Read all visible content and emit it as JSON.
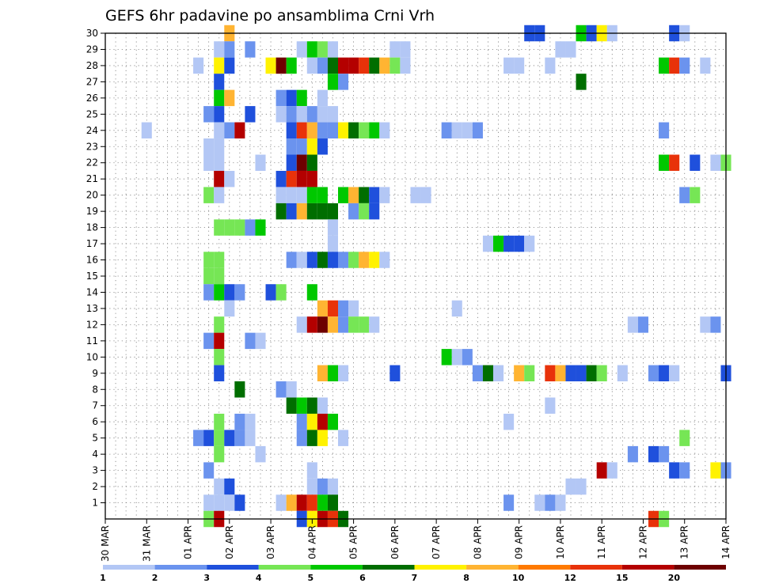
{
  "chart_data": {
    "type": "heatmap",
    "title": "GEFS 6hr padavine po ansamblima Crni Vrh",
    "xlabel": "",
    "ylabel": "",
    "x_tick_labels": [
      "30 MAR",
      "31 MAR",
      "01 APR",
      "02 APR",
      "03 APR",
      "04 APR",
      "05 APR",
      "06 APR",
      "07 APR",
      "08 APR",
      "09 APR",
      "10 APR",
      "11 APR",
      "12 APR",
      "13 APR",
      "14 APR"
    ],
    "x_unit": "6-hour steps from 30 MAR 00Z",
    "xlim": [
      0,
      60
    ],
    "y_tick_labels": [
      "1",
      "2",
      "3",
      "4",
      "5",
      "6",
      "7",
      "8",
      "9",
      "10",
      "11",
      "12",
      "13",
      "14",
      "15",
      "16",
      "17",
      "18",
      "19",
      "20",
      "21",
      "22",
      "23",
      "24",
      "25",
      "26",
      "27",
      "28",
      "29",
      "30"
    ],
    "ylim": [
      0,
      30
    ],
    "grid": true,
    "colorbar": {
      "labels": [
        "1",
        "2",
        "3",
        "4",
        "5",
        "6",
        "7",
        "8",
        "10",
        "12",
        "15",
        "20"
      ],
      "colors": [
        "#b3c7f5",
        "#6b93ee",
        "#1f50dc",
        "#76e655",
        "#00c800",
        "#006e00",
        "#fff200",
        "#ffb432",
        "#ff7a00",
        "#e8320a",
        "#b40000",
        "#6e0000"
      ]
    },
    "cells": [
      [
        30,
        12,
        "#ffb432"
      ],
      [
        30,
        41,
        "#1f50dc"
      ],
      [
        30,
        42,
        "#1f50dc"
      ],
      [
        30,
        46,
        "#00c800"
      ],
      [
        30,
        47,
        "#1f50dc"
      ],
      [
        30,
        48,
        "#fff200"
      ],
      [
        30,
        49,
        "#b3c7f5"
      ],
      [
        30,
        55,
        "#1f50dc"
      ],
      [
        30,
        56,
        "#b3c7f5"
      ],
      [
        29,
        11,
        "#b3c7f5"
      ],
      [
        29,
        12,
        "#6b93ee"
      ],
      [
        29,
        14,
        "#6b93ee"
      ],
      [
        29,
        19,
        "#b3c7f5"
      ],
      [
        29,
        20,
        "#00c800"
      ],
      [
        29,
        21,
        "#76e655"
      ],
      [
        29,
        22,
        "#b3c7f5"
      ],
      [
        29,
        28,
        "#b3c7f5"
      ],
      [
        29,
        29,
        "#b3c7f5"
      ],
      [
        29,
        44,
        "#b3c7f5"
      ],
      [
        29,
        45,
        "#b3c7f5"
      ],
      [
        28,
        9,
        "#b3c7f5"
      ],
      [
        28,
        11,
        "#fff200"
      ],
      [
        28,
        12,
        "#1f50dc"
      ],
      [
        28,
        16,
        "#fff200"
      ],
      [
        28,
        17,
        "#6e0000"
      ],
      [
        28,
        18,
        "#00c800"
      ],
      [
        28,
        20,
        "#b3c7f5"
      ],
      [
        28,
        21,
        "#6b93ee"
      ],
      [
        28,
        22,
        "#006e00"
      ],
      [
        28,
        23,
        "#b40000"
      ],
      [
        28,
        24,
        "#b40000"
      ],
      [
        28,
        25,
        "#e8320a"
      ],
      [
        28,
        26,
        "#006e00"
      ],
      [
        28,
        27,
        "#ffb432"
      ],
      [
        28,
        28,
        "#76e655"
      ],
      [
        28,
        29,
        "#b3c7f5"
      ],
      [
        28,
        39,
        "#b3c7f5"
      ],
      [
        28,
        40,
        "#b3c7f5"
      ],
      [
        28,
        43,
        "#b3c7f5"
      ],
      [
        28,
        54,
        "#00c800"
      ],
      [
        28,
        55,
        "#e8320a"
      ],
      [
        28,
        56,
        "#6b93ee"
      ],
      [
        28,
        58,
        "#b3c7f5"
      ],
      [
        27,
        11,
        "#1f50dc"
      ],
      [
        27,
        22,
        "#00c800"
      ],
      [
        27,
        23,
        "#6b93ee"
      ],
      [
        27,
        46,
        "#006e00"
      ],
      [
        26,
        11,
        "#00c800"
      ],
      [
        26,
        12,
        "#ffb432"
      ],
      [
        26,
        17,
        "#6b93ee"
      ],
      [
        26,
        18,
        "#1f50dc"
      ],
      [
        26,
        19,
        "#00c800"
      ],
      [
        26,
        21,
        "#b3c7f5"
      ],
      [
        25,
        10,
        "#6b93ee"
      ],
      [
        25,
        11,
        "#1f50dc"
      ],
      [
        25,
        14,
        "#1f50dc"
      ],
      [
        25,
        17,
        "#b3c7f5"
      ],
      [
        25,
        18,
        "#6b93ee"
      ],
      [
        25,
        19,
        "#b3c7f5"
      ],
      [
        25,
        20,
        "#6b93ee"
      ],
      [
        25,
        21,
        "#b3c7f5"
      ],
      [
        25,
        22,
        "#b3c7f5"
      ],
      [
        24,
        4,
        "#b3c7f5"
      ],
      [
        24,
        11,
        "#b3c7f5"
      ],
      [
        24,
        12,
        "#6b93ee"
      ],
      [
        24,
        13,
        "#b40000"
      ],
      [
        24,
        18,
        "#1f50dc"
      ],
      [
        24,
        19,
        "#e8320a"
      ],
      [
        24,
        20,
        "#ffb432"
      ],
      [
        24,
        21,
        "#6b93ee"
      ],
      [
        24,
        22,
        "#6b93ee"
      ],
      [
        24,
        23,
        "#fff200"
      ],
      [
        24,
        24,
        "#006e00"
      ],
      [
        24,
        25,
        "#76e655"
      ],
      [
        24,
        26,
        "#00c800"
      ],
      [
        24,
        27,
        "#b3c7f5"
      ],
      [
        24,
        33,
        "#6b93ee"
      ],
      [
        24,
        34,
        "#b3c7f5"
      ],
      [
        24,
        35,
        "#b3c7f5"
      ],
      [
        24,
        36,
        "#6b93ee"
      ],
      [
        24,
        54,
        "#6b93ee"
      ],
      [
        23,
        10,
        "#b3c7f5"
      ],
      [
        23,
        11,
        "#b3c7f5"
      ],
      [
        23,
        18,
        "#6b93ee"
      ],
      [
        23,
        19,
        "#6b93ee"
      ],
      [
        23,
        20,
        "#fff200"
      ],
      [
        23,
        21,
        "#1f50dc"
      ],
      [
        22,
        10,
        "#b3c7f5"
      ],
      [
        22,
        11,
        "#b3c7f5"
      ],
      [
        22,
        15,
        "#b3c7f5"
      ],
      [
        22,
        18,
        "#1f50dc"
      ],
      [
        22,
        19,
        "#6e0000"
      ],
      [
        22,
        20,
        "#006e00"
      ],
      [
        22,
        54,
        "#00c800"
      ],
      [
        22,
        55,
        "#e8320a"
      ],
      [
        22,
        57,
        "#1f50dc"
      ],
      [
        22,
        59,
        "#b3c7f5"
      ],
      [
        22,
        60,
        "#76e655"
      ],
      [
        21,
        11,
        "#b40000"
      ],
      [
        21,
        12,
        "#b3c7f5"
      ],
      [
        21,
        17,
        "#1f50dc"
      ],
      [
        21,
        18,
        "#e8320a"
      ],
      [
        21,
        19,
        "#b40000"
      ],
      [
        21,
        20,
        "#b40000"
      ],
      [
        20,
        10,
        "#76e655"
      ],
      [
        20,
        11,
        "#b3c7f5"
      ],
      [
        20,
        17,
        "#b3c7f5"
      ],
      [
        20,
        18,
        "#b3c7f5"
      ],
      [
        20,
        19,
        "#b3c7f5"
      ],
      [
        20,
        20,
        "#00c800"
      ],
      [
        20,
        21,
        "#00c800"
      ],
      [
        20,
        23,
        "#00c800"
      ],
      [
        20,
        24,
        "#ffb432"
      ],
      [
        20,
        25,
        "#006e00"
      ],
      [
        20,
        26,
        "#1f50dc"
      ],
      [
        20,
        27,
        "#b3c7f5"
      ],
      [
        20,
        30,
        "#b3c7f5"
      ],
      [
        20,
        31,
        "#b3c7f5"
      ],
      [
        20,
        56,
        "#6b93ee"
      ],
      [
        20,
        57,
        "#76e655"
      ],
      [
        19,
        17,
        "#006e00"
      ],
      [
        19,
        18,
        "#1f50dc"
      ],
      [
        19,
        19,
        "#ffb432"
      ],
      [
        19,
        20,
        "#006e00"
      ],
      [
        19,
        21,
        "#006e00"
      ],
      [
        19,
        22,
        "#006e00"
      ],
      [
        19,
        24,
        "#6b93ee"
      ],
      [
        19,
        25,
        "#76e655"
      ],
      [
        19,
        26,
        "#1f50dc"
      ],
      [
        18,
        11,
        "#76e655"
      ],
      [
        18,
        12,
        "#76e655"
      ],
      [
        18,
        13,
        "#76e655"
      ],
      [
        18,
        14,
        "#6b93ee"
      ],
      [
        18,
        15,
        "#00c800"
      ],
      [
        18,
        22,
        "#b3c7f5"
      ],
      [
        17,
        22,
        "#b3c7f5"
      ],
      [
        17,
        37,
        "#b3c7f5"
      ],
      [
        17,
        38,
        "#00c800"
      ],
      [
        17,
        39,
        "#1f50dc"
      ],
      [
        17,
        40,
        "#1f50dc"
      ],
      [
        17,
        41,
        "#b3c7f5"
      ],
      [
        16,
        10,
        "#76e655"
      ],
      [
        16,
        11,
        "#76e655"
      ],
      [
        16,
        18,
        "#6b93ee"
      ],
      [
        16,
        19,
        "#b3c7f5"
      ],
      [
        16,
        20,
        "#1f50dc"
      ],
      [
        16,
        21,
        "#006e00"
      ],
      [
        16,
        22,
        "#1f50dc"
      ],
      [
        16,
        23,
        "#6b93ee"
      ],
      [
        16,
        24,
        "#76e655"
      ],
      [
        16,
        25,
        "#ffb432"
      ],
      [
        16,
        26,
        "#fff200"
      ],
      [
        16,
        27,
        "#b3c7f5"
      ],
      [
        15,
        10,
        "#76e655"
      ],
      [
        15,
        11,
        "#76e655"
      ],
      [
        14,
        10,
        "#6b93ee"
      ],
      [
        14,
        11,
        "#00c800"
      ],
      [
        14,
        12,
        "#1f50dc"
      ],
      [
        14,
        13,
        "#6b93ee"
      ],
      [
        14,
        16,
        "#1f50dc"
      ],
      [
        14,
        17,
        "#76e655"
      ],
      [
        14,
        20,
        "#00c800"
      ],
      [
        13,
        12,
        "#b3c7f5"
      ],
      [
        13,
        21,
        "#ffb432"
      ],
      [
        13,
        22,
        "#e8320a"
      ],
      [
        13,
        23,
        "#6b93ee"
      ],
      [
        13,
        24,
        "#b3c7f5"
      ],
      [
        13,
        34,
        "#b3c7f5"
      ],
      [
        12,
        11,
        "#76e655"
      ],
      [
        12,
        19,
        "#b3c7f5"
      ],
      [
        12,
        20,
        "#b40000"
      ],
      [
        12,
        21,
        "#6e0000"
      ],
      [
        12,
        22,
        "#ffb432"
      ],
      [
        12,
        23,
        "#6b93ee"
      ],
      [
        12,
        24,
        "#76e655"
      ],
      [
        12,
        25,
        "#76e655"
      ],
      [
        12,
        26,
        "#b3c7f5"
      ],
      [
        12,
        51,
        "#b3c7f5"
      ],
      [
        12,
        52,
        "#6b93ee"
      ],
      [
        12,
        58,
        "#b3c7f5"
      ],
      [
        12,
        59,
        "#6b93ee"
      ],
      [
        11,
        10,
        "#6b93ee"
      ],
      [
        11,
        11,
        "#b40000"
      ],
      [
        11,
        14,
        "#6b93ee"
      ],
      [
        11,
        15,
        "#b3c7f5"
      ],
      [
        10,
        11,
        "#76e655"
      ],
      [
        10,
        33,
        "#00c800"
      ],
      [
        10,
        34,
        "#b3c7f5"
      ],
      [
        10,
        35,
        "#6b93ee"
      ],
      [
        9,
        11,
        "#1f50dc"
      ],
      [
        9,
        21,
        "#ffb432"
      ],
      [
        9,
        22,
        "#00c800"
      ],
      [
        9,
        23,
        "#b3c7f5"
      ],
      [
        9,
        28,
        "#1f50dc"
      ],
      [
        9,
        36,
        "#6b93ee"
      ],
      [
        9,
        37,
        "#006e00"
      ],
      [
        9,
        38,
        "#b3c7f5"
      ],
      [
        9,
        40,
        "#ffb432"
      ],
      [
        9,
        41,
        "#76e655"
      ],
      [
        9,
        43,
        "#e8320a"
      ],
      [
        9,
        44,
        "#ffb432"
      ],
      [
        9,
        45,
        "#1f50dc"
      ],
      [
        9,
        46,
        "#1f50dc"
      ],
      [
        9,
        47,
        "#006e00"
      ],
      [
        9,
        48,
        "#76e655"
      ],
      [
        9,
        50,
        "#b3c7f5"
      ],
      [
        9,
        53,
        "#6b93ee"
      ],
      [
        9,
        54,
        "#1f50dc"
      ],
      [
        9,
        55,
        "#b3c7f5"
      ],
      [
        9,
        60,
        "#1f50dc"
      ],
      [
        8,
        13,
        "#006e00"
      ],
      [
        8,
        17,
        "#6b93ee"
      ],
      [
        8,
        18,
        "#b3c7f5"
      ],
      [
        7,
        18,
        "#006e00"
      ],
      [
        7,
        19,
        "#00c800"
      ],
      [
        7,
        20,
        "#006e00"
      ],
      [
        7,
        21,
        "#b3c7f5"
      ],
      [
        7,
        43,
        "#b3c7f5"
      ],
      [
        6,
        11,
        "#76e655"
      ],
      [
        6,
        13,
        "#6b93ee"
      ],
      [
        6,
        14,
        "#b3c7f5"
      ],
      [
        6,
        19,
        "#6b93ee"
      ],
      [
        6,
        20,
        "#fff200"
      ],
      [
        6,
        21,
        "#b40000"
      ],
      [
        6,
        22,
        "#00c800"
      ],
      [
        6,
        39,
        "#b3c7f5"
      ],
      [
        5,
        9,
        "#6b93ee"
      ],
      [
        5,
        10,
        "#1f50dc"
      ],
      [
        5,
        11,
        "#76e655"
      ],
      [
        5,
        12,
        "#1f50dc"
      ],
      [
        5,
        13,
        "#6b93ee"
      ],
      [
        5,
        14,
        "#b3c7f5"
      ],
      [
        5,
        19,
        "#6b93ee"
      ],
      [
        5,
        20,
        "#006e00"
      ],
      [
        5,
        21,
        "#fff200"
      ],
      [
        5,
        23,
        "#b3c7f5"
      ],
      [
        5,
        56,
        "#76e655"
      ],
      [
        4,
        11,
        "#76e655"
      ],
      [
        4,
        15,
        "#b3c7f5"
      ],
      [
        4,
        51,
        "#6b93ee"
      ],
      [
        4,
        53,
        "#1f50dc"
      ],
      [
        4,
        54,
        "#6b93ee"
      ],
      [
        3,
        10,
        "#6b93ee"
      ],
      [
        3,
        20,
        "#b3c7f5"
      ],
      [
        3,
        48,
        "#b40000"
      ],
      [
        3,
        49,
        "#b3c7f5"
      ],
      [
        3,
        55,
        "#1f50dc"
      ],
      [
        3,
        56,
        "#6b93ee"
      ],
      [
        3,
        59,
        "#fff200"
      ],
      [
        3,
        60,
        "#6b93ee"
      ],
      [
        2,
        11,
        "#b3c7f5"
      ],
      [
        2,
        12,
        "#1f50dc"
      ],
      [
        2,
        20,
        "#b3c7f5"
      ],
      [
        2,
        21,
        "#6b93ee"
      ],
      [
        2,
        22,
        "#b3c7f5"
      ],
      [
        2,
        45,
        "#b3c7f5"
      ],
      [
        2,
        46,
        "#b3c7f5"
      ],
      [
        1,
        10,
        "#b3c7f5"
      ],
      [
        1,
        11,
        "#b3c7f5"
      ],
      [
        1,
        12,
        "#b3c7f5"
      ],
      [
        1,
        13,
        "#1f50dc"
      ],
      [
        1,
        17,
        "#b3c7f5"
      ],
      [
        1,
        18,
        "#ffb432"
      ],
      [
        1,
        19,
        "#b40000"
      ],
      [
        1,
        20,
        "#e8320a"
      ],
      [
        1,
        21,
        "#00c800"
      ],
      [
        1,
        22,
        "#006e00"
      ],
      [
        1,
        39,
        "#6b93ee"
      ],
      [
        1,
        42,
        "#b3c7f5"
      ],
      [
        1,
        43,
        "#6b93ee"
      ],
      [
        1,
        44,
        "#b3c7f5"
      ],
      [
        0,
        10,
        "#76e655"
      ],
      [
        0,
        11,
        "#b40000"
      ],
      [
        0,
        19,
        "#1f50dc"
      ],
      [
        0,
        20,
        "#fff200"
      ],
      [
        0,
        21,
        "#b40000"
      ],
      [
        0,
        22,
        "#e8320a"
      ],
      [
        0,
        23,
        "#006e00"
      ],
      [
        0,
        53,
        "#e8320a"
      ],
      [
        0,
        54,
        "#76e655"
      ]
    ]
  }
}
